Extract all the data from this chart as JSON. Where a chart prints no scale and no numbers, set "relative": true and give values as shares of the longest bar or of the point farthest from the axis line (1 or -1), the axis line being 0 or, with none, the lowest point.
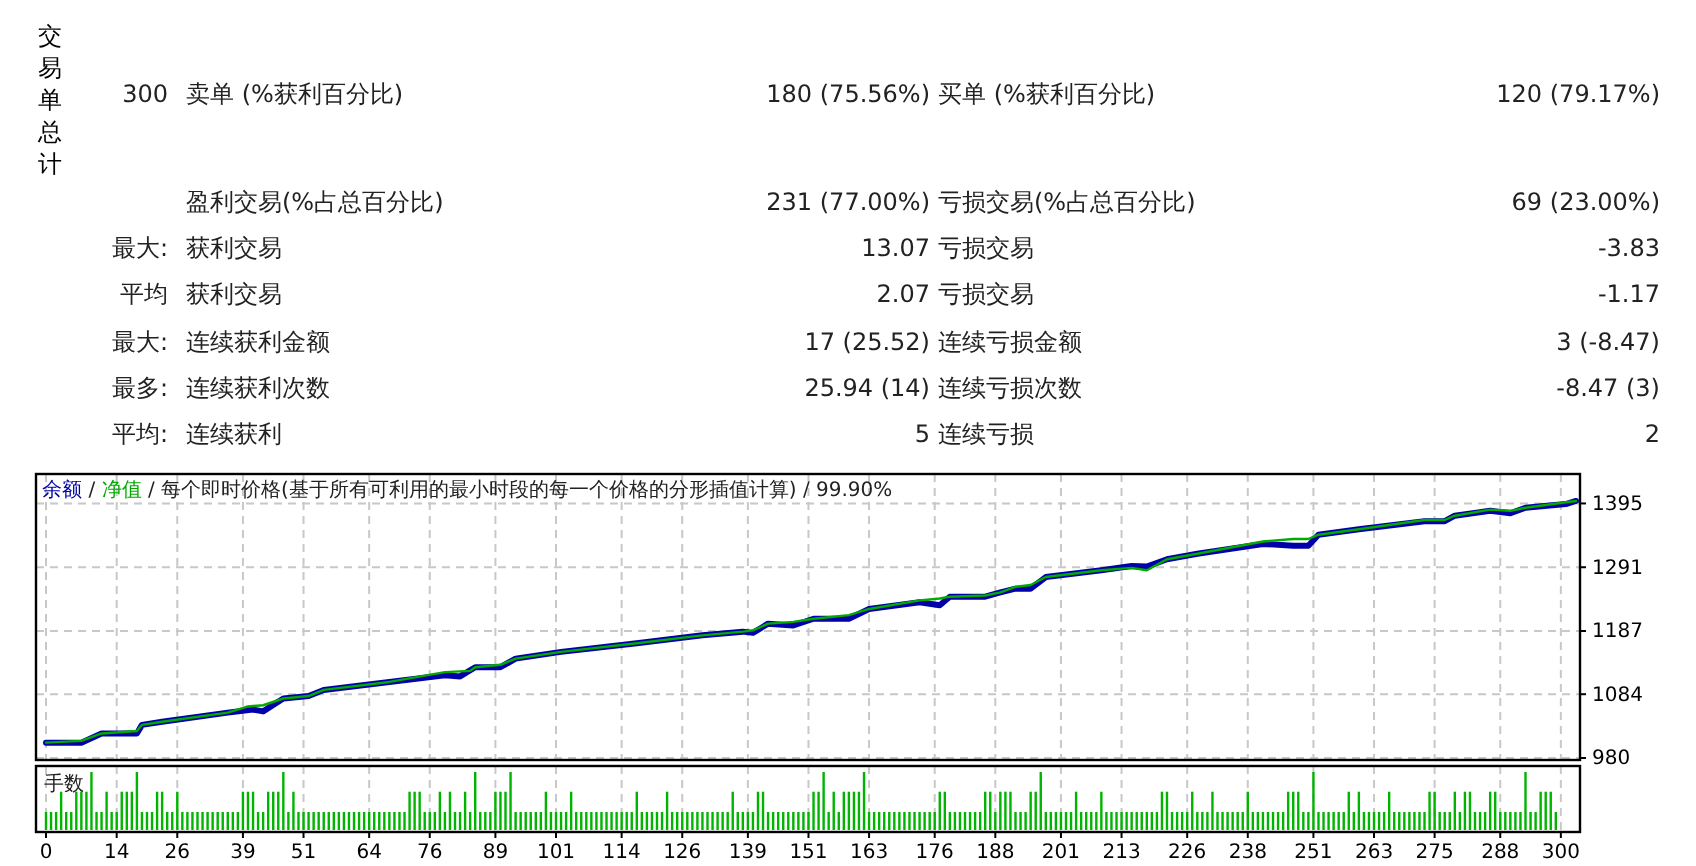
{
  "chart_data": [
    {
      "type": "other",
      "annotations": [
        "交易单总计",
        "300",
        "卖单 (%获利百分比)",
        "180 (75.56%)",
        "买单 (%获利百分比)",
        "120 (79.17%)",
        "盈利交易(%占总百分比)",
        "231 (77.00%)",
        "亏损交易(%占总百分比)",
        "69 (23.00%)",
        "最大:",
        "获利交易",
        "13.07",
        "亏损交易",
        "-3.83",
        "平均",
        "获利交易",
        "2.07",
        "亏损交易",
        "-1.17",
        "最大:",
        "连续获利金额",
        "17 (25.52)",
        "连续亏损金额",
        "3 (-8.47)",
        "最多:",
        "连续获利次数",
        "25.94 (14)",
        "连续亏损次数",
        "-8.47 (3)",
        "平均:",
        "连续获利",
        "5",
        "连续亏损",
        "2"
      ]
    },
    {
      "type": "line",
      "annotations": [
        "/"
      ],
      "title": "/ 每个即时价格(基于所有可利用的最小时段的每一个价格的分形插值计算) / 99.90%",
      "legend": "top left",
      "grid": true,
      "tick_labels": "y",
      "xlim": [
        0,
        303
      ],
      "xticks": [
        0,
        14,
        26,
        39,
        51,
        64,
        76,
        89,
        101,
        114,
        126,
        139,
        151,
        163,
        176,
        188,
        201,
        213,
        226,
        238,
        251,
        263,
        275,
        288,
        300
      ],
      "ylim": [
        980,
        1443
      ],
      "yticks": [
        980,
        1084,
        1187,
        1291,
        1395
      ],
      "series": [
        {
          "name": "余额",
          "color": "#0000aa",
          "x": [
            0,
            7,
            11,
            18,
            19,
            23,
            36,
            41,
            43,
            47,
            52,
            55,
            68,
            79,
            82,
            85,
            90,
            93,
            102,
            117,
            130,
            138,
            140,
            143,
            148,
            152,
            159,
            163,
            173,
            177,
            179,
            186,
            189,
            192,
            195,
            198,
            209,
            215,
            218,
            222,
            228,
            241,
            247,
            250,
            252,
            260,
            273,
            277,
            279,
            286,
            290,
            293,
            301,
            303
          ],
          "values": [
            1005,
            1005,
            1020,
            1020,
            1034,
            1039,
            1054,
            1059,
            1056,
            1077,
            1081,
            1091,
            1104,
            1115,
            1113,
            1128,
            1128,
            1142,
            1153,
            1167,
            1180,
            1186,
            1184,
            1199,
            1196,
            1207,
            1207,
            1223,
            1234,
            1229,
            1243,
            1243,
            1250,
            1256,
            1256,
            1275,
            1286,
            1293,
            1292,
            1304,
            1313,
            1329,
            1326,
            1326,
            1344,
            1353,
            1366,
            1366,
            1375,
            1383,
            1379,
            1388,
            1394,
            1399
          ]
        },
        {
          "name": "净值",
          "color": "#00aa00",
          "x": [
            0,
            7,
            11,
            18,
            19,
            23,
            36,
            40,
            43,
            47,
            52,
            55,
            68,
            79,
            84,
            85,
            90,
            93,
            102,
            117,
            130,
            138,
            140,
            143,
            148,
            152,
            159,
            163,
            173,
            177,
            179,
            186,
            189,
            192,
            195,
            198,
            209,
            215,
            218,
            222,
            228,
            241,
            247,
            250,
            252,
            260,
            273,
            277,
            279,
            286,
            290,
            293,
            301,
            303
          ],
          "values": [
            1005,
            1008,
            1020,
            1024,
            1034,
            1039,
            1054,
            1064,
            1066,
            1077,
            1081,
            1091,
            1104,
            1120,
            1122,
            1128,
            1132,
            1142,
            1153,
            1167,
            1180,
            1186,
            1188,
            1199,
            1202,
            1207,
            1213,
            1223,
            1237,
            1240,
            1243,
            1245,
            1250,
            1259,
            1262,
            1275,
            1286,
            1290,
            1286,
            1304,
            1313,
            1333,
            1337,
            1337,
            1344,
            1353,
            1368,
            1368,
            1375,
            1385,
            1383,
            1388,
            1397,
            1399
          ]
        }
      ]
    },
    {
      "type": "bar",
      "ylabel": "手数",
      "relative": true,
      "grid": "x",
      "tick_labels": "x",
      "color": "#00b400",
      "xlim": [
        0,
        303
      ],
      "xticks": [
        0,
        14,
        26,
        39,
        51,
        64,
        76,
        89,
        101,
        114,
        126,
        139,
        151,
        163,
        176,
        188,
        201,
        213,
        226,
        238,
        251,
        263,
        275,
        288,
        300
      ],
      "x": [
        0,
        1,
        2,
        3,
        4,
        5,
        6,
        7,
        8,
        9,
        10,
        11,
        12,
        13,
        14,
        15,
        16,
        17,
        18,
        19,
        20,
        21,
        22,
        23,
        24,
        25,
        26,
        27,
        28,
        29,
        30,
        31,
        32,
        33,
        34,
        35,
        36,
        37,
        38,
        39,
        40,
        41,
        42,
        43,
        44,
        45,
        46,
        47,
        48,
        49,
        50,
        51,
        52,
        53,
        54,
        55,
        56,
        57,
        58,
        59,
        60,
        61,
        62,
        63,
        64,
        65,
        66,
        67,
        68,
        69,
        70,
        71,
        72,
        73,
        74,
        75,
        76,
        77,
        78,
        79,
        80,
        81,
        82,
        83,
        84,
        85,
        86,
        87,
        88,
        89,
        90,
        91,
        92,
        93,
        94,
        95,
        96,
        97,
        98,
        99,
        100,
        101,
        102,
        103,
        104,
        105,
        106,
        107,
        108,
        109,
        110,
        111,
        112,
        113,
        114,
        115,
        116,
        117,
        118,
        119,
        120,
        121,
        122,
        123,
        124,
        125,
        126,
        127,
        128,
        129,
        130,
        131,
        132,
        133,
        134,
        135,
        136,
        137,
        138,
        139,
        140,
        141,
        142,
        143,
        144,
        145,
        146,
        147,
        148,
        149,
        150,
        151,
        152,
        153,
        154,
        155,
        156,
        157,
        158,
        159,
        160,
        161,
        162,
        163,
        164,
        165,
        166,
        167,
        168,
        169,
        170,
        171,
        172,
        173,
        174,
        175,
        176,
        177,
        178,
        179,
        180,
        181,
        182,
        183,
        184,
        185,
        186,
        187,
        188,
        189,
        190,
        191,
        192,
        193,
        194,
        195,
        196,
        197,
        198,
        199,
        200,
        201,
        202,
        203,
        204,
        205,
        206,
        207,
        208,
        209,
        210,
        211,
        212,
        213,
        214,
        215,
        216,
        217,
        218,
        219,
        220,
        221,
        222,
        223,
        224,
        225,
        226,
        227,
        228,
        229,
        230,
        231,
        232,
        233,
        234,
        235,
        236,
        237,
        238,
        239,
        240,
        241,
        242,
        243,
        244,
        245,
        246,
        247,
        248,
        249,
        250,
        251,
        252,
        253,
        254,
        255,
        256,
        257,
        258,
        259,
        260,
        261,
        262,
        263,
        264,
        265,
        266,
        267,
        268,
        269,
        270,
        271,
        272,
        273,
        274,
        275,
        276,
        277,
        278,
        279,
        280,
        281,
        282,
        283,
        284,
        285,
        286,
        287,
        288,
        289,
        290,
        291,
        292,
        293,
        294,
        295,
        296,
        297,
        298,
        299
      ],
      "values": [
        0.31,
        0.31,
        0.31,
        0.66,
        0.31,
        0.31,
        0.66,
        0.66,
        0.66,
        1,
        0.31,
        0.31,
        0.66,
        0.31,
        0.31,
        0.66,
        0.66,
        0.66,
        1,
        0.31,
        0.31,
        0.31,
        0.66,
        0.66,
        0.31,
        0.31,
        0.66,
        0.31,
        0.31,
        0.31,
        0.31,
        0.31,
        0.31,
        0.31,
        0.31,
        0.31,
        0.31,
        0.31,
        0.31,
        0.66,
        0.66,
        0.66,
        0.31,
        0.31,
        0.66,
        0.66,
        0.66,
        1,
        0.31,
        0.66,
        0.31,
        0.31,
        0.31,
        0.31,
        0.31,
        0.31,
        0.31,
        0.31,
        0.31,
        0.31,
        0.31,
        0.31,
        0.31,
        0.31,
        0.31,
        0.31,
        0.31,
        0.31,
        0.31,
        0.31,
        0.31,
        0.31,
        0.66,
        0.66,
        0.66,
        0.31,
        0.31,
        0.31,
        0.66,
        0.31,
        0.66,
        0.31,
        0.31,
        0.66,
        0.31,
        1,
        0.31,
        0.31,
        0.31,
        0.66,
        0.66,
        0.66,
        1,
        0.31,
        0.31,
        0.31,
        0.31,
        0.31,
        0.31,
        0.66,
        0.31,
        0.31,
        0.31,
        0.31,
        0.66,
        0.31,
        0.31,
        0.31,
        0.31,
        0.31,
        0.31,
        0.31,
        0.31,
        0.31,
        0.31,
        0.31,
        0.31,
        0.66,
        0.31,
        0.31,
        0.31,
        0.31,
        0.31,
        0.66,
        0.31,
        0.31,
        0.31,
        0.31,
        0.31,
        0.31,
        0.31,
        0.31,
        0.31,
        0.31,
        0.31,
        0.31,
        0.66,
        0.31,
        0.31,
        0.31,
        0.31,
        0.66,
        0.66,
        0.31,
        0.31,
        0.31,
        0.31,
        0.31,
        0.31,
        0.31,
        0.31,
        0.31,
        0.66,
        0.66,
        1,
        0.31,
        0.66,
        0.31,
        0.66,
        0.66,
        0.66,
        0.66,
        1,
        0.31,
        0.31,
        0.31,
        0.31,
        0.31,
        0.31,
        0.31,
        0.31,
        0.31,
        0.31,
        0.31,
        0.31,
        0.31,
        0.31,
        0.66,
        0.66,
        0.31,
        0.31,
        0.31,
        0.31,
        0.31,
        0.31,
        0.31,
        0.66,
        0.66,
        0.31,
        0.66,
        0.66,
        0.66,
        0.31,
        0.31,
        0.31,
        0.66,
        0.66,
        1,
        0.31,
        0.31,
        0.31,
        0.31,
        0.31,
        0.31,
        0.66,
        0.31,
        0.31,
        0.31,
        0.31,
        0.66,
        0.31,
        0.31,
        0.31,
        0.31,
        0.31,
        0.31,
        0.31,
        0.31,
        0.31,
        0.31,
        0.31,
        0.66,
        0.66,
        0.31,
        0.31,
        0.31,
        0.31,
        0.66,
        0.31,
        0.31,
        0.31,
        0.66,
        0.31,
        0.31,
        0.31,
        0.31,
        0.31,
        0.31,
        0.66,
        0.31,
        0.31,
        0.31,
        0.31,
        0.31,
        0.31,
        0.31,
        0.66,
        0.66,
        0.66,
        0.31,
        0.31,
        1,
        0.31,
        0.31,
        0.31,
        0.31,
        0.31,
        0.31,
        0.66,
        0.31,
        0.66,
        0.31,
        0.31,
        0.31,
        0.31,
        0.31,
        0.66,
        0.31,
        0.31,
        0.31,
        0.31,
        0.31,
        0.31,
        0.31,
        0.66,
        0.66,
        0.31,
        0.31,
        0.31,
        0.66,
        0.31,
        0.66,
        0.66,
        0.31,
        0.31,
        0.31,
        0.66,
        0.66,
        0.31,
        0.31,
        0.31,
        0.31,
        0.31,
        1,
        0.31,
        0.31,
        0.66,
        0.66,
        0.66,
        0.31
      ]
    }
  ]
}
